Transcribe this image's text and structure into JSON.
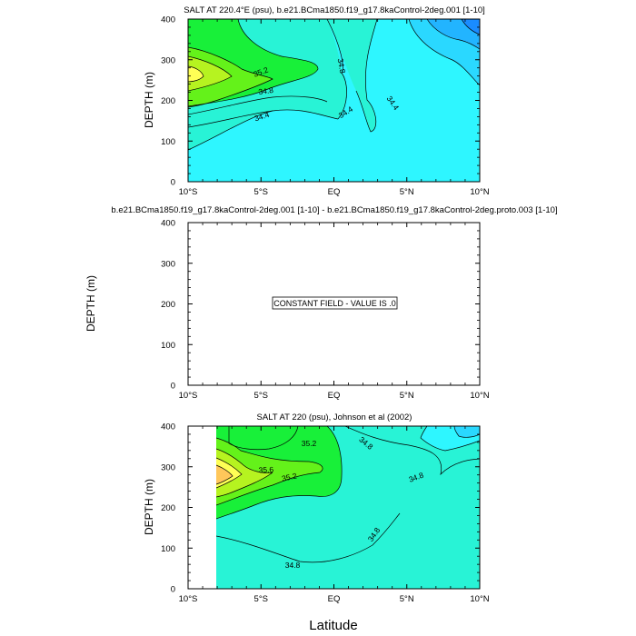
{
  "figure": {
    "xlabel": "Latitude",
    "ylabel": "DEPTH (m)",
    "x_ticks": [
      "10°S",
      "5°S",
      "EQ",
      "5°N",
      "10°N"
    ],
    "y_ticks": [
      "0",
      "100",
      "200",
      "300",
      "400"
    ]
  },
  "colors": {
    "blue_deep": "#1a8cff",
    "blue_mid": "#22b4ff",
    "blue_light": "#2ad8ff",
    "cyan": "#2ef6ff",
    "aqua": "#28f3d6",
    "green": "#18f039",
    "green_light": "#64f21a",
    "lime": "#b6f320",
    "yellow": "#ffff55",
    "orange": "#ffc75a"
  },
  "chart_data": [
    {
      "type": "contour",
      "title": "SALT AT 220.4°E (psu), b.e21.BCma1850.f19_g17.8kaControl-2deg.001 [1-10]",
      "xlabel": "",
      "ylabel": "DEPTH (m)",
      "xlim": [
        -10,
        10
      ],
      "ylim": [
        400,
        0
      ],
      "x_ticks": [
        -10,
        -5,
        0,
        5,
        10
      ],
      "y_ticks": [
        0,
        100,
        200,
        300,
        400
      ],
      "contour_labels": [
        "35.2",
        "34.8",
        "34.8",
        "34.4",
        "34.4",
        "34.4"
      ],
      "contour_label_values": [
        35.2,
        34.8,
        34.8,
        34.4,
        34.4,
        34.4
      ],
      "contour_label_points": [
        [
          -4.6,
          72
        ],
        [
          0.4,
          55
        ],
        [
          -4.9,
          153
        ],
        [
          3.6,
          140
        ],
        [
          -4.9,
          248
        ],
        [
          0.6,
          240
        ]
      ]
    },
    {
      "type": "contour",
      "title": "b.e21.BCma1850.f19_g17.8kaControl-2deg.001 [1-10] - b.e21.BCma1850.f19_g17.8kaControl-2deg.proto.003 [1-10]",
      "xlabel": "",
      "ylabel": "DEPTH (m)",
      "xlim": [
        -10,
        10
      ],
      "ylim": [
        400,
        0
      ],
      "x_ticks": [
        -10,
        -5,
        0,
        5,
        10
      ],
      "y_ticks": [
        0,
        100,
        200,
        300,
        400
      ],
      "annotation": "CONSTANT FIELD - VALUE IS .0",
      "constant_value": 0.0
    },
    {
      "type": "contour",
      "title": "SALT AT 220 (psu), Johnson et al (2002)",
      "xlabel": "Latitude",
      "ylabel": "DEPTH (m)",
      "xlim": [
        -10,
        10
      ],
      "ylim": [
        400,
        0
      ],
      "x_ticks": [
        -10,
        -5,
        0,
        5,
        10
      ],
      "y_ticks": [
        0,
        100,
        200,
        300,
        400
      ],
      "data_extent_x": [
        -8,
        10
      ],
      "contour_labels": [
        "35.2",
        "35.6",
        "35.2",
        "34.8",
        "34.8",
        "34.8",
        "34.8"
      ],
      "contour_label_values": [
        35.2,
        35.6,
        35.2,
        34.8,
        34.8,
        34.8,
        34.8
      ],
      "contour_label_points": [
        [
          -1.6,
          43
        ],
        [
          -4.6,
          109
        ],
        [
          -2.9,
          130
        ],
        [
          2.1,
          48
        ],
        [
          5.4,
          133
        ],
        [
          2.8,
          272
        ],
        [
          -2.9,
          344
        ]
      ]
    }
  ]
}
